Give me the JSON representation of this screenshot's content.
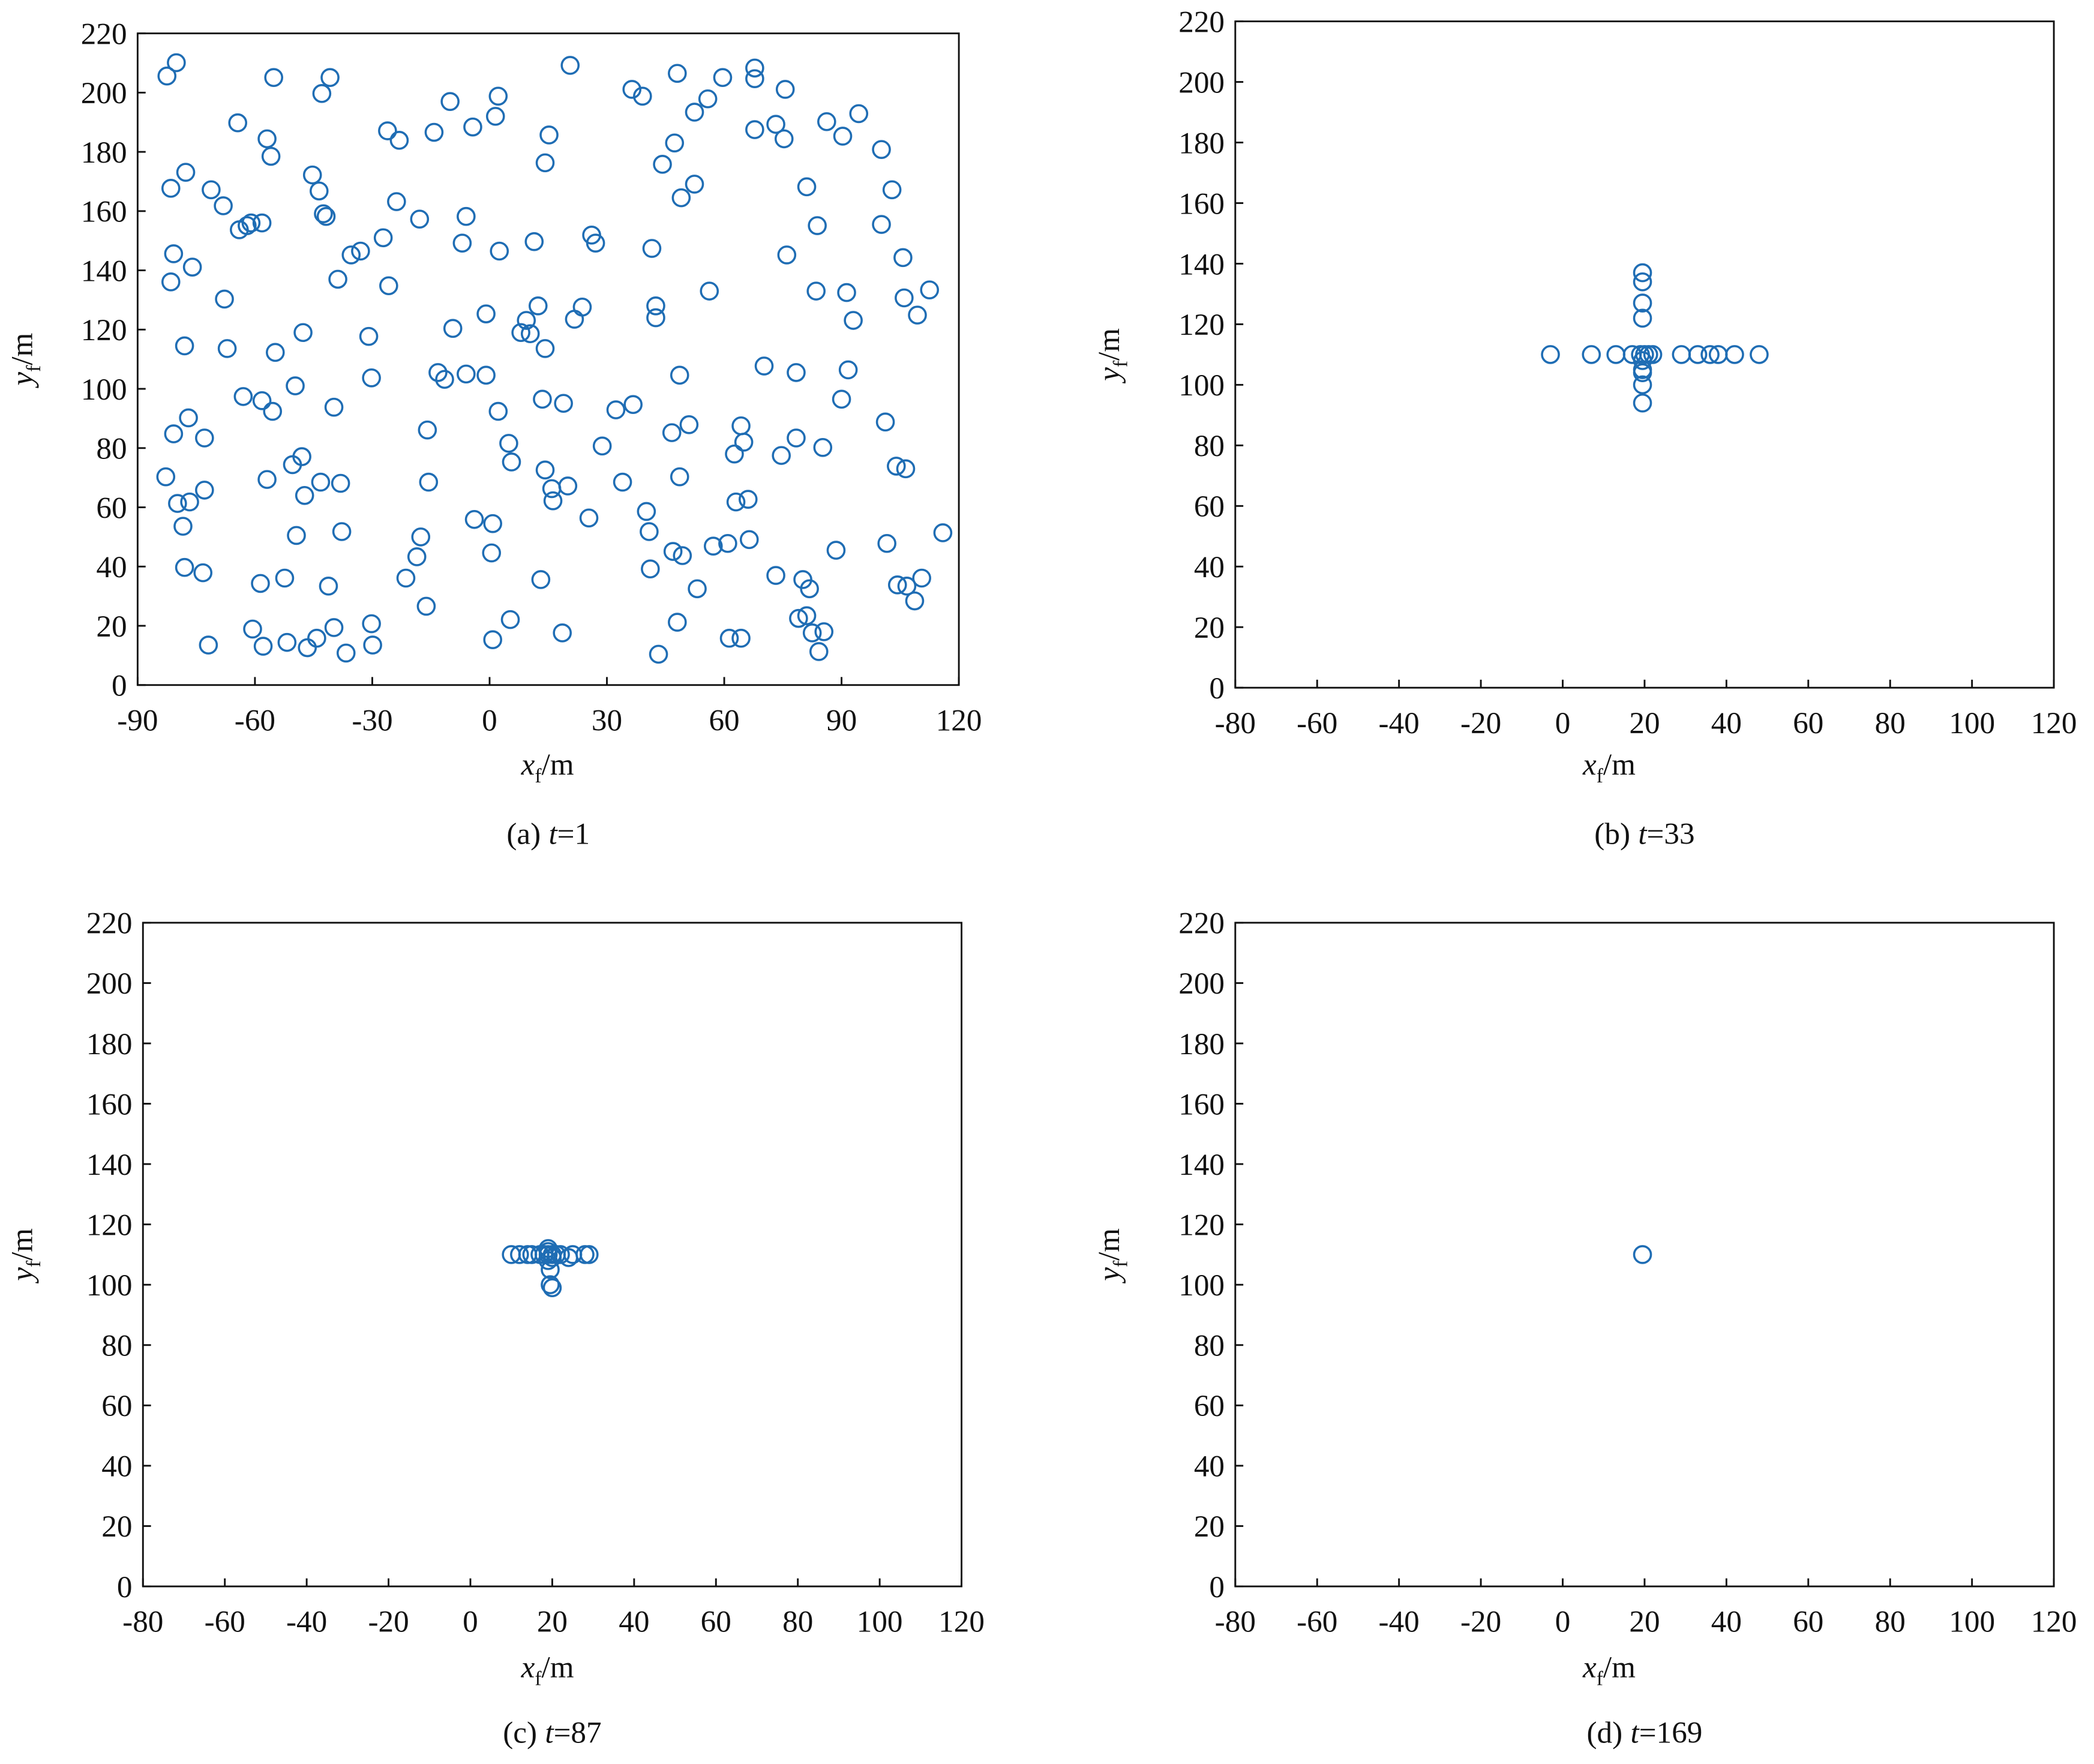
{
  "chart_data": [
    {
      "type": "scatter",
      "caption": [
        "(a)",
        "t",
        "=1"
      ],
      "xlabel": [
        "x",
        "f",
        "/m"
      ],
      "ylabel": [
        "y",
        "f",
        "/m"
      ],
      "color": "#1f6db4",
      "xlim": [
        -90,
        120
      ],
      "xticks": [
        -90,
        -60,
        -30,
        0,
        30,
        60,
        90,
        120
      ],
      "ylim": [
        0,
        220
      ],
      "yticks": [
        0,
        20,
        40,
        60,
        80,
        100,
        120,
        140,
        160,
        180,
        200,
        220
      ],
      "x": [
        -82.5,
        -80.1,
        -55.2,
        -42.9,
        -40.8,
        -64.4,
        -56.9,
        -55.9,
        -45.3,
        -43.6,
        -42.5,
        -41.8,
        -77.7,
        -81.5,
        -71.2,
        -68.1,
        -80.8,
        -76.0,
        -81.5,
        -67.8,
        -61.0,
        -64.0,
        -62.0,
        -58.2,
        -78.0,
        -67.1,
        -54.8,
        -47.7,
        -63.0,
        -58.2,
        -55.5,
        -49.7,
        -39.8,
        -80.8,
        -72.9,
        -77.0,
        -82.8,
        -79.8,
        -76.7,
        -72.9,
        -78.4,
        -78.0,
        -73.3,
        -71.9,
        -60.6,
        -57.9,
        -58.6,
        -52.4,
        -51.8,
        -46.6,
        -44.2,
        -39.8,
        -36.7,
        -41.2,
        -37.8,
        -49.4,
        -47.3,
        -43.2,
        -38.1,
        -50.4,
        -48.0,
        -56.9,
        -35.4,
        -33.0,
        -38.8,
        -30.9,
        -30.2,
        -27.2,
        -25.8,
        -26.1,
        -23.1,
        -23.8,
        -17.9,
        -14.2,
        -10.1,
        -6.0,
        -7.0,
        -4.3,
        2.2,
        1.5,
        2.5,
        -0.9,
        -9.4,
        -13.2,
        -11.5,
        -6.0,
        -0.9,
        2.2,
        4.9,
        5.6,
        -15.9,
        -15.6,
        -17.6,
        -18.6,
        -16.2,
        -21.4,
        -30.2,
        -29.9,
        -3.9,
        0.8,
        0.5,
        0.8,
        5.3,
        13.1,
        15.9,
        16.2,
        14.2,
        13.5,
        12.4,
        14.2,
        15.2,
        11.4,
        8.0,
        9.4,
        10.4,
        14.2,
        18.9,
        20.6,
        20.0,
        18.6,
        25.4,
        21.7,
        23.7,
        26.1,
        27.1,
        28.8,
        32.3,
        34.0,
        36.7,
        36.4,
        39.1,
        41.5,
        42.5,
        42.5,
        44.2,
        48.0,
        47.3,
        49.0,
        52.4,
        55.8,
        52.4,
        59.6,
        48.6,
        46.6,
        48.6,
        51.0,
        40.1,
        40.8,
        41.1,
        43.2,
        46.9,
        49.3,
        48.0,
        53.1,
        56.2,
        57.2,
        60.9,
        67.8,
        67.8,
        67.8,
        73.2,
        75.3,
        75.6,
        76.0,
        70.2,
        64.3,
        65.0,
        62.6,
        74.6,
        78.4,
        78.4,
        63.0,
        66.1,
        66.4,
        73.2,
        80.1,
        81.8,
        81.1,
        82.5,
        84.2,
        85.5,
        61.3,
        64.3,
        81.1,
        83.8,
        83.5,
        85.2,
        86.2,
        90.3,
        94.4,
        91.3,
        93.0,
        91.7,
        90.0,
        88.6,
        100.2,
        100.2,
        102.9,
        105.7,
        106.0,
        109.4,
        112.5,
        101.2,
        104.0,
        106.4,
        101.6,
        104.3,
        106.7,
        108.7,
        110.5,
        115.9,
        79.0
      ],
      "y": [
        205.6,
        210.1,
        205.1,
        199.7,
        205.1,
        189.8,
        184.4,
        178.5,
        172.2,
        166.8,
        159.1,
        158.2,
        173.1,
        167.7,
        167.2,
        161.8,
        145.6,
        141.1,
        136.1,
        130.3,
        156.0,
        153.7,
        155.1,
        156.0,
        114.5,
        113.6,
        112.3,
        119.0,
        97.4,
        96.0,
        92.4,
        101.0,
        93.8,
        84.8,
        83.4,
        90.2,
        70.3,
        61.3,
        61.8,
        65.8,
        53.6,
        39.7,
        37.9,
        13.5,
        18.9,
        13.1,
        34.3,
        36.1,
        14.4,
        12.6,
        15.8,
        19.4,
        10.8,
        33.4,
        51.8,
        50.5,
        64.0,
        68.5,
        68.1,
        74.4,
        77.1,
        69.4,
        145.2,
        146.5,
        137.0,
        117.7,
        103.7,
        151.0,
        134.8,
        187.1,
        183.9,
        163.2,
        157.3,
        186.6,
        197.0,
        158.2,
        149.2,
        188.4,
        198.8,
        192.0,
        146.5,
        125.3,
        120.4,
        105.5,
        103.2,
        105.0,
        104.6,
        92.4,
        81.6,
        75.3,
        86.1,
        68.5,
        50.0,
        43.3,
        26.6,
        36.1,
        20.7,
        13.5,
        55.9,
        54.5,
        44.6,
        15.3,
        22.1,
        35.6,
        66.3,
        62.2,
        72.6,
        96.5,
        128.0,
        176.3,
        185.7,
        149.7,
        119.0,
        123.1,
        118.6,
        113.6,
        95.1,
        209.2,
        67.2,
        17.6,
        56.4,
        123.5,
        127.6,
        151.9,
        149.2,
        80.7,
        92.9,
        68.5,
        94.7,
        201.1,
        198.8,
        147.4,
        128.0,
        124.0,
        175.8,
        206.5,
        183.0,
        164.5,
        169.1,
        197.9,
        193.4,
        205.1,
        104.6,
        85.2,
        70.3,
        87.9,
        58.6,
        51.8,
        39.2,
        10.4,
        45.1,
        43.7,
        21.2,
        32.5,
        133.0,
        46.9,
        47.8,
        208.3,
        204.7,
        187.5,
        189.3,
        184.4,
        201.1,
        145.2,
        107.7,
        87.5,
        82.0,
        78.0,
        77.5,
        83.4,
        105.5,
        61.8,
        62.7,
        49.1,
        37.0,
        35.6,
        32.5,
        23.4,
        17.6,
        11.3,
        18.0,
        15.8,
        15.8,
        168.2,
        155.1,
        133.0,
        80.2,
        190.2,
        185.3,
        192.9,
        132.5,
        123.1,
        106.4,
        96.5,
        45.5,
        180.8,
        155.5,
        167.2,
        144.3,
        130.7,
        124.9,
        133.4,
        88.8,
        73.9,
        73.0,
        47.8,
        33.8,
        33.4,
        28.4,
        36.1,
        51.4,
        22.5
      ]
    },
    {
      "type": "scatter",
      "caption": [
        "(b)",
        "t",
        "=33"
      ],
      "xlabel": [
        "x",
        "f",
        "/m"
      ],
      "ylabel": [
        "y",
        "f",
        "/m"
      ],
      "color": "#1f6db4",
      "xlim": [
        -80,
        120
      ],
      "xticks": [
        -80,
        -60,
        -40,
        -20,
        0,
        20,
        40,
        60,
        80,
        100,
        120
      ],
      "ylim": [
        0,
        220
      ],
      "yticks": [
        0,
        20,
        40,
        60,
        80,
        100,
        120,
        140,
        160,
        180,
        200,
        220
      ],
      "x": [
        -3,
        7,
        13,
        17,
        19,
        20,
        21,
        22,
        29,
        33,
        36,
        38,
        42,
        48,
        19.5,
        19.5,
        19.5,
        19.5,
        19.5,
        19.5,
        19.5,
        19.5,
        19.5
      ],
      "y": [
        110,
        110,
        110,
        110,
        110,
        110,
        110,
        110,
        110,
        110,
        110,
        110,
        110,
        110,
        137,
        134,
        127,
        122,
        108,
        105,
        104,
        100,
        94
      ]
    },
    {
      "type": "scatter",
      "caption": [
        "(c)",
        "t",
        "=87"
      ],
      "xlabel": [
        "x",
        "f",
        "/m"
      ],
      "ylabel": [
        "y",
        "f",
        "/m"
      ],
      "color": "#1f6db4",
      "xlim": [
        -80,
        120
      ],
      "xticks": [
        -80,
        -60,
        -40,
        -20,
        0,
        20,
        40,
        60,
        80,
        100,
        120
      ],
      "ylim": [
        0,
        220
      ],
      "yticks": [
        0,
        20,
        40,
        60,
        80,
        100,
        120,
        140,
        160,
        180,
        200,
        220
      ],
      "x": [
        10,
        12,
        14,
        15,
        17,
        18,
        19,
        20,
        21,
        22,
        24,
        25,
        28,
        29,
        19.5,
        19.5,
        20,
        19,
        19,
        20,
        19
      ],
      "y": [
        110,
        110,
        110,
        110,
        110,
        110,
        110,
        110,
        110,
        110,
        109,
        110,
        110,
        110,
        105,
        100,
        99,
        112,
        111,
        109,
        108
      ]
    },
    {
      "type": "scatter",
      "caption": [
        "(d)",
        "t",
        "=169"
      ],
      "xlabel": [
        "x",
        "f",
        "/m"
      ],
      "ylabel": [
        "y",
        "f",
        "/m"
      ],
      "color": "#1f6db4",
      "xlim": [
        -80,
        120
      ],
      "xticks": [
        -80,
        -60,
        -40,
        -20,
        0,
        20,
        40,
        60,
        80,
        100,
        120
      ],
      "ylim": [
        0,
        220
      ],
      "yticks": [
        0,
        20,
        40,
        60,
        80,
        100,
        120,
        140,
        160,
        180,
        200,
        220
      ],
      "x": [
        19.5
      ],
      "y": [
        110
      ]
    }
  ]
}
